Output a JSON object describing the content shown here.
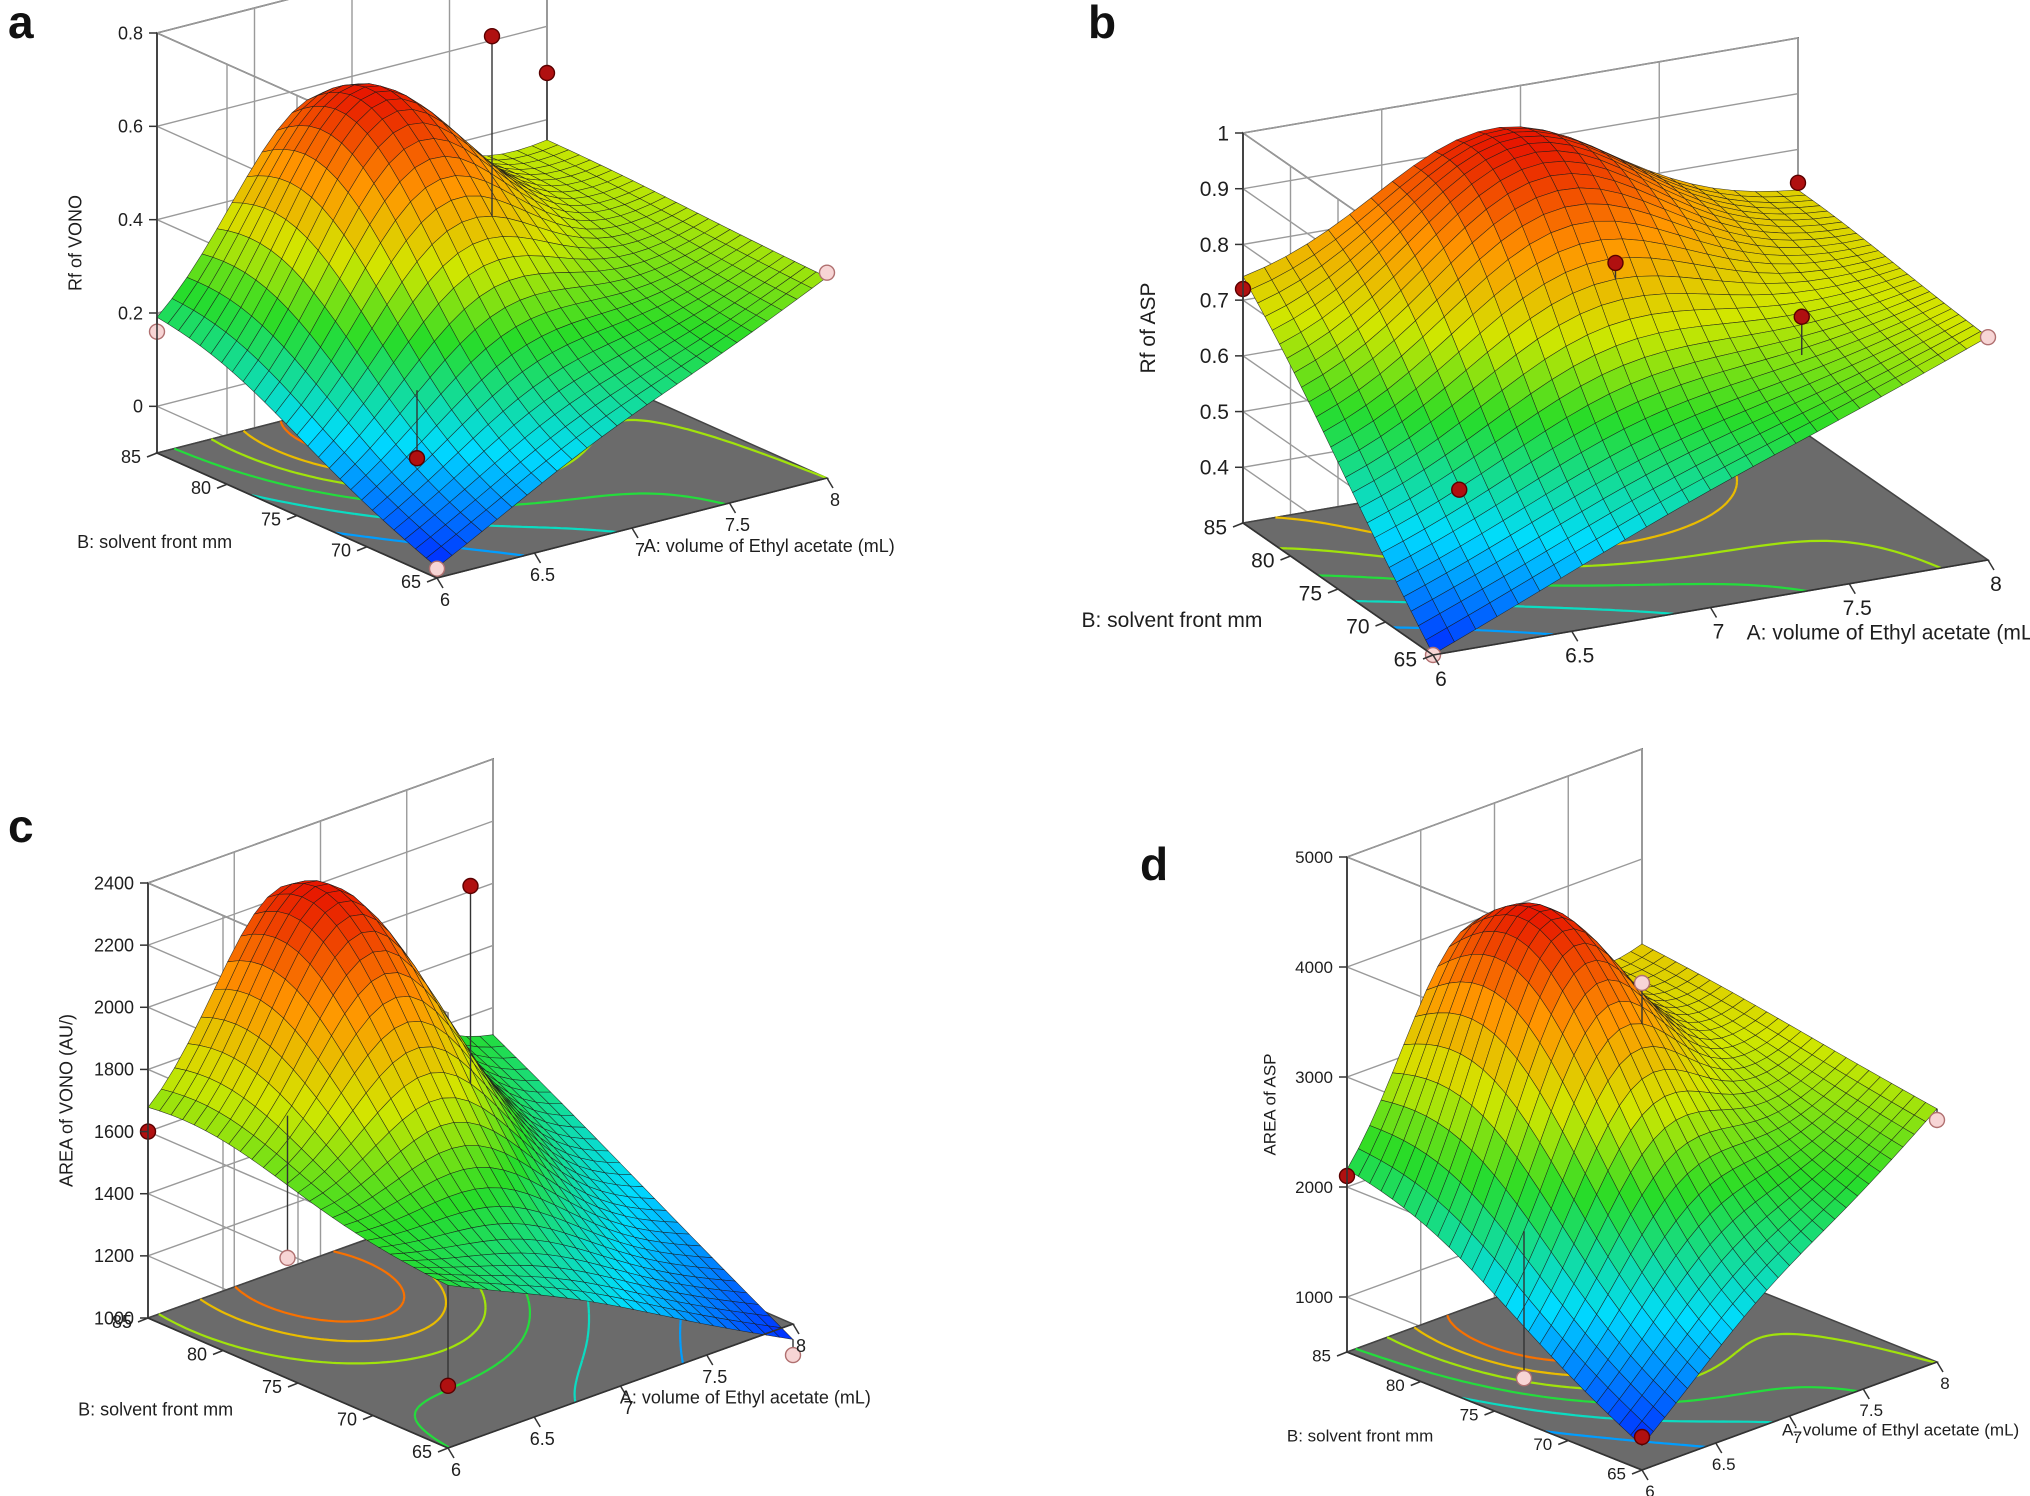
{
  "chart_data": [
    {
      "panel": "a",
      "type": "surface3d",
      "zlabel": "Rf of VONO",
      "xlabel": "A: volume of Ethyl acetate (mL)",
      "ylabel": "B: solvent front mm",
      "xticks": [
        "6",
        "6.5",
        "7",
        "7.5",
        "8"
      ],
      "yticks": [
        "65",
        "70",
        "75",
        "80",
        "85"
      ],
      "zticks": [
        "0",
        "0.2",
        "0.4",
        "0.6",
        "0.8"
      ],
      "xlim": [
        6,
        8
      ],
      "ylim": [
        65,
        85
      ],
      "zlim": [
        -0.1,
        0.8
      ],
      "surface_peak": {
        "A": 6.8,
        "B": 81,
        "z": 0.63
      },
      "corners": {
        "A6_B65": -0.08,
        "A6_B85": 0.13,
        "A8_B65": 0.33,
        "A8_B85": 0.35
      },
      "design_points": [
        {
          "A": 6,
          "B": 85,
          "z": 0.16,
          "position": "below"
        },
        {
          "A": 6,
          "B": 65,
          "z": -0.08,
          "position": "below"
        },
        {
          "A": 6.4,
          "B": 72,
          "z": 0.02,
          "position": "above"
        },
        {
          "A": 7,
          "B": 75,
          "z": 0.82,
          "position": "above"
        },
        {
          "A": 8,
          "B": 85,
          "z": 0.5,
          "position": "above"
        },
        {
          "A": 8,
          "B": 65,
          "z": 0.34,
          "position": "below"
        }
      ]
    },
    {
      "panel": "b",
      "type": "surface3d",
      "zlabel": "Rf of ASP",
      "xlabel": "A: volume of Ethyl acetate (mL)",
      "ylabel": "B: solvent front mm",
      "xticks": [
        "6",
        "6.5",
        "7",
        "7.5",
        "8"
      ],
      "yticks": [
        "65",
        "70",
        "75",
        "80",
        "85"
      ],
      "zticks": [
        "0.4",
        "0.5",
        "0.6",
        "0.7",
        "0.8",
        "0.9",
        "1"
      ],
      "xlim": [
        6,
        8
      ],
      "ylim": [
        65,
        85
      ],
      "zlim": [
        0.3,
        1.0
      ],
      "surface_peak": {
        "A": 6.9,
        "B": 81,
        "z": 0.93
      },
      "corners": {
        "A6_B65": 0.3,
        "A6_B85": 0.72,
        "A8_B65": 0.7,
        "A8_B85": 0.72
      },
      "design_points": [
        {
          "A": 6,
          "B": 85,
          "z": 0.72,
          "position": "above"
        },
        {
          "A": 6,
          "B": 65,
          "z": 0.3,
          "position": "below"
        },
        {
          "A": 6.3,
          "B": 71,
          "z": 0.5,
          "position": "above"
        },
        {
          "A": 7,
          "B": 75,
          "z": 0.8,
          "position": "above"
        },
        {
          "A": 7.5,
          "B": 70,
          "z": 0.72,
          "position": "above"
        },
        {
          "A": 8,
          "B": 85,
          "z": 0.74,
          "position": "above"
        },
        {
          "A": 8,
          "B": 65,
          "z": 0.7,
          "position": "below"
        }
      ]
    },
    {
      "panel": "c",
      "type": "surface3d",
      "zlabel": "AREA of VONO (AU/)",
      "xlabel": "A: volume of Ethyl acetate (mL)",
      "ylabel": "B: solvent front mm",
      "xticks": [
        "6",
        "6.5",
        "7",
        "7.5",
        "8"
      ],
      "yticks": [
        "65",
        "70",
        "75",
        "80",
        "85"
      ],
      "zticks": [
        "1000",
        "1200",
        "1400",
        "1600",
        "1800",
        "2000",
        "2200",
        "2400"
      ],
      "xlim": [
        6,
        8
      ],
      "ylim": [
        65,
        85
      ],
      "zlim": [
        1000,
        2400
      ],
      "surface_peak": {
        "A": 6.8,
        "B": 82,
        "z": 2280
      },
      "corners": {
        "A6_B65": 1520,
        "A6_B85": 1560,
        "A8_B65": 950,
        "A8_B85": 1500
      },
      "design_points": [
        {
          "A": 6,
          "B": 85,
          "z": 1600,
          "position": "above"
        },
        {
          "A": 6.2,
          "B": 78,
          "z": 1300,
          "position": "below"
        },
        {
          "A": 6,
          "B": 65,
          "z": 1200,
          "position": "above"
        },
        {
          "A": 7,
          "B": 75,
          "z": 2400,
          "position": "above"
        },
        {
          "A": 8,
          "B": 65,
          "z": 900,
          "position": "below"
        }
      ]
    },
    {
      "panel": "d",
      "type": "surface3d",
      "zlabel": "AREA of ASP",
      "xlabel": "A: volume of Ethyl acetate (mL)",
      "ylabel": "B: solvent front mm",
      "xticks": [
        "6",
        "6.5",
        "7",
        "7.5",
        "8"
      ],
      "yticks": [
        "65",
        "70",
        "75",
        "80",
        "85"
      ],
      "zticks": [
        "1000",
        "2000",
        "3000",
        "4000",
        "5000"
      ],
      "xlim": [
        6,
        8
      ],
      "ylim": [
        65,
        85
      ],
      "zlim": [
        500,
        5000
      ],
      "surface_peak": {
        "A": 6.8,
        "B": 80,
        "z": 4300
      },
      "corners": {
        "A6_B65": 700,
        "A6_B85": 1900,
        "A8_B65": 2800,
        "A8_B85": 3200
      },
      "design_points": [
        {
          "A": 6,
          "B": 85,
          "z": 2100,
          "position": "above"
        },
        {
          "A": 6.2,
          "B": 75,
          "z": 700,
          "position": "below"
        },
        {
          "A": 6,
          "B": 65,
          "z": 800,
          "position": "above"
        },
        {
          "A": 7,
          "B": 75,
          "z": 3900,
          "position": "below"
        },
        {
          "A": 8,
          "B": 65,
          "z": 2700,
          "position": "below"
        }
      ]
    }
  ]
}
